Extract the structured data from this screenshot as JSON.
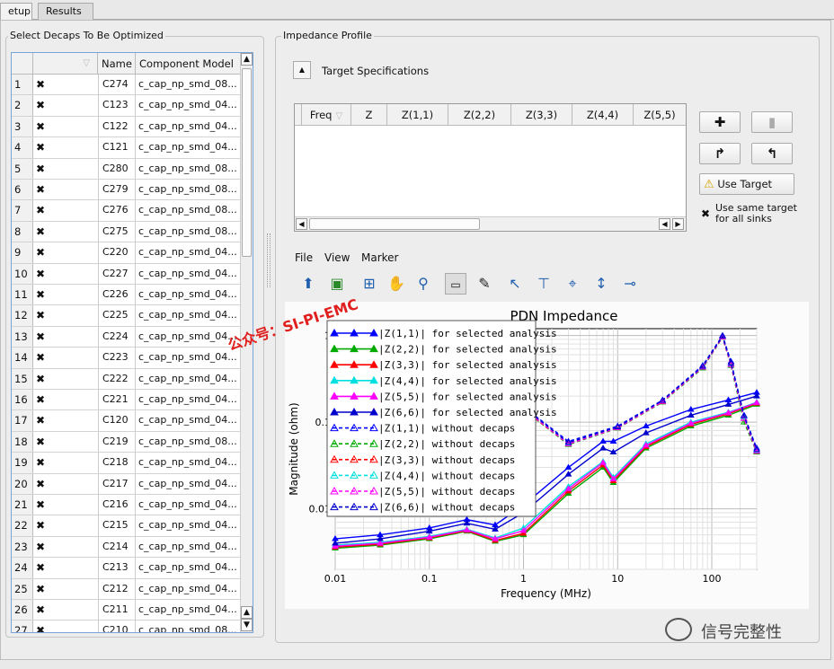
{
  "tabs": [
    "etup",
    "Results"
  ],
  "decaps": {
    "title": "Select Decaps To Be Optimized",
    "columns": [
      "",
      "Name",
      "Component Model"
    ],
    "rows": [
      {
        "n": "1",
        "name": "C274",
        "model": "c_cap_np_smd_08..."
      },
      {
        "n": "2",
        "name": "C123",
        "model": "c_cap_np_smd_04..."
      },
      {
        "n": "3",
        "name": "C122",
        "model": "c_cap_np_smd_04..."
      },
      {
        "n": "4",
        "name": "C121",
        "model": "c_cap_np_smd_04..."
      },
      {
        "n": "5",
        "name": "C280",
        "model": "c_cap_np_smd_08..."
      },
      {
        "n": "6",
        "name": "C279",
        "model": "c_cap_np_smd_08..."
      },
      {
        "n": "7",
        "name": "C276",
        "model": "c_cap_np_smd_08..."
      },
      {
        "n": "8",
        "name": "C275",
        "model": "c_cap_np_smd_08..."
      },
      {
        "n": "9",
        "name": "C220",
        "model": "c_cap_np_smd_04..."
      },
      {
        "n": "10",
        "name": "C227",
        "model": "c_cap_np_smd_04..."
      },
      {
        "n": "11",
        "name": "C226",
        "model": "c_cap_np_smd_04..."
      },
      {
        "n": "12",
        "name": "C225",
        "model": "c_cap_np_smd_04..."
      },
      {
        "n": "13",
        "name": "C224",
        "model": "c_cap_np_smd_04..."
      },
      {
        "n": "14",
        "name": "C223",
        "model": "c_cap_np_smd_04..."
      },
      {
        "n": "15",
        "name": "C222",
        "model": "c_cap_np_smd_04..."
      },
      {
        "n": "16",
        "name": "C221",
        "model": "c_cap_np_smd_04..."
      },
      {
        "n": "17",
        "name": "C120",
        "model": "c_cap_np_smd_04..."
      },
      {
        "n": "18",
        "name": "C219",
        "model": "c_cap_np_smd_08..."
      },
      {
        "n": "19",
        "name": "C218",
        "model": "c_cap_np_smd_04..."
      },
      {
        "n": "20",
        "name": "C217",
        "model": "c_cap_np_smd_04..."
      },
      {
        "n": "21",
        "name": "C216",
        "model": "c_cap_np_smd_04..."
      },
      {
        "n": "22",
        "name": "C215",
        "model": "c_cap_np_smd_04..."
      },
      {
        "n": "23",
        "name": "C214",
        "model": "c_cap_np_smd_04..."
      },
      {
        "n": "24",
        "name": "C213",
        "model": "c_cap_np_smd_04..."
      },
      {
        "n": "25",
        "name": "C212",
        "model": "c_cap_np_smd_04..."
      },
      {
        "n": "26",
        "name": "C211",
        "model": "c_cap_np_smd_04..."
      },
      {
        "n": "27",
        "name": "C210",
        "model": "c_cap_np_smd_08..."
      }
    ]
  },
  "impedance": {
    "title": "Impedance Profile",
    "target_label": "Target Specifications",
    "columns": [
      "Freq",
      "Z",
      "Z(1,1)",
      "Z(2,2)",
      "Z(3,3)",
      "Z(4,4)",
      "Z(5,5)"
    ],
    "use_target": "Use Target",
    "same_target_line1": "Use same target",
    "same_target_line2": "for all sinks",
    "menu": [
      "File",
      "View",
      "Marker"
    ]
  },
  "watermarks": {
    "left": "公众号：SI-PI-EMC",
    "bottom": "信号完整性"
  },
  "colors": {
    "accent": "#7aa4d6",
    "red_watermark": "#e0201e"
  },
  "chart_data": {
    "type": "line",
    "title": "PDN Impedance",
    "xlabel": "Frequency (MHz)",
    "ylabel": "Magnitude (ohm)",
    "xscale": "log",
    "yscale": "log",
    "xlim": [
      0.01,
      300
    ],
    "ylim": [
      0.002,
      1.2
    ],
    "xticks": [
      {
        "v": 0.01,
        "label": "0.01"
      },
      {
        "v": 0.1,
        "label": "0.1"
      },
      {
        "v": 1,
        "label": "1"
      },
      {
        "v": 10,
        "label": "10"
      },
      {
        "v": 100,
        "label": "100"
      }
    ],
    "yticks": [
      {
        "v": 0.01,
        "label": "0.01"
      },
      {
        "v": 0.1,
        "label": "0.1"
      },
      {
        "v": 1,
        "label": "1"
      }
    ],
    "grid": true,
    "legend_position": "top-left",
    "series": [
      {
        "name": "|Z(1,1)| for selected analysis",
        "color": "#0000ff",
        "dash": false,
        "x": [
          0.01,
          0.03,
          0.1,
          0.25,
          0.5,
          1,
          3,
          7,
          9,
          20,
          60,
          150,
          300
        ],
        "y": [
          0.0045,
          0.005,
          0.006,
          0.0075,
          0.0065,
          0.011,
          0.03,
          0.06,
          0.06,
          0.09,
          0.14,
          0.18,
          0.22
        ]
      },
      {
        "name": "|Z(2,2)| for selected analysis",
        "color": "#00aa00",
        "dash": false,
        "x": [
          0.01,
          0.03,
          0.1,
          0.25,
          0.5,
          1,
          3,
          7,
          9,
          20,
          60,
          150,
          300
        ],
        "y": [
          0.0035,
          0.0038,
          0.0045,
          0.0055,
          0.0042,
          0.005,
          0.015,
          0.03,
          0.02,
          0.05,
          0.09,
          0.12,
          0.16
        ]
      },
      {
        "name": "|Z(3,3)| for selected analysis",
        "color": "#ff0000",
        "dash": false,
        "x": [
          0.01,
          0.03,
          0.1,
          0.25,
          0.5,
          1,
          3,
          7,
          9,
          20,
          60,
          150,
          300
        ],
        "y": [
          0.0036,
          0.0039,
          0.0046,
          0.0056,
          0.0043,
          0.0052,
          0.016,
          0.032,
          0.021,
          0.052,
          0.094,
          0.125,
          0.165
        ]
      },
      {
        "name": "|Z(4,4)| for selected analysis",
        "color": "#00e0e0",
        "dash": false,
        "x": [
          0.01,
          0.03,
          0.1,
          0.25,
          0.5,
          1,
          3,
          7,
          9,
          20,
          60,
          150,
          300
        ],
        "y": [
          0.0038,
          0.0041,
          0.0048,
          0.0058,
          0.0046,
          0.006,
          0.018,
          0.035,
          0.023,
          0.056,
          0.1,
          0.13,
          0.17
        ]
      },
      {
        "name": "|Z(5,5)| for selected analysis",
        "color": "#ff00ff",
        "dash": false,
        "x": [
          0.01,
          0.03,
          0.1,
          0.25,
          0.5,
          1,
          3,
          7,
          9,
          20,
          60,
          150,
          300
        ],
        "y": [
          0.0037,
          0.004,
          0.0047,
          0.0057,
          0.0045,
          0.0056,
          0.017,
          0.034,
          0.022,
          0.054,
          0.097,
          0.128,
          0.168
        ]
      },
      {
        "name": "|Z(6,6)| for selected analysis",
        "color": "#0000cc",
        "dash": false,
        "x": [
          0.01,
          0.03,
          0.1,
          0.25,
          0.5,
          1,
          3,
          7,
          9,
          20,
          60,
          150,
          300
        ],
        "y": [
          0.004,
          0.0045,
          0.0055,
          0.0068,
          0.0058,
          0.009,
          0.025,
          0.05,
          0.045,
          0.075,
          0.12,
          0.16,
          0.2
        ]
      },
      {
        "name": "|Z(1,1)| without decaps",
        "color": "#0000ff",
        "dash": true,
        "x": [
          0.3,
          0.5,
          1,
          3,
          10,
          30,
          80,
          130,
          160,
          220,
          300
        ],
        "y": [
          0.5,
          0.3,
          0.15,
          0.06,
          0.09,
          0.18,
          0.45,
          1.0,
          0.5,
          0.12,
          0.05
        ]
      },
      {
        "name": "|Z(2,2)| without decaps",
        "color": "#00aa00",
        "dash": true,
        "x": [
          0.3,
          0.5,
          1,
          3,
          10,
          30,
          80,
          130,
          160,
          220,
          300
        ],
        "y": [
          0.45,
          0.27,
          0.14,
          0.055,
          0.085,
          0.17,
          0.42,
          0.95,
          0.45,
          0.1,
          0.045
        ]
      },
      {
        "name": "|Z(3,3)| without decaps",
        "color": "#ff0000",
        "dash": true,
        "x": [
          0.3,
          0.5,
          1,
          3,
          10,
          30,
          80,
          130,
          160,
          220,
          300
        ],
        "y": [
          0.46,
          0.28,
          0.14,
          0.056,
          0.086,
          0.172,
          0.43,
          0.96,
          0.46,
          0.11,
          0.046
        ]
      },
      {
        "name": "|Z(4,4)| without decaps",
        "color": "#00e0e0",
        "dash": true,
        "x": [
          0.3,
          0.5,
          1,
          3,
          10,
          30,
          80,
          130,
          160,
          220,
          300
        ],
        "y": [
          0.47,
          0.29,
          0.145,
          0.057,
          0.087,
          0.175,
          0.44,
          0.97,
          0.47,
          0.115,
          0.047
        ]
      },
      {
        "name": "|Z(5,5)| without decaps",
        "color": "#ff00ff",
        "dash": true,
        "x": [
          0.3,
          0.5,
          1,
          3,
          10,
          30,
          80,
          130,
          160,
          220,
          300
        ],
        "y": [
          0.46,
          0.28,
          0.143,
          0.056,
          0.086,
          0.173,
          0.43,
          0.96,
          0.46,
          0.11,
          0.046
        ]
      },
      {
        "name": "|Z(6,6)| without decaps",
        "color": "#0000cc",
        "dash": true,
        "x": [
          0.3,
          0.5,
          1,
          3,
          10,
          30,
          80,
          130,
          160,
          220,
          300
        ],
        "y": [
          0.48,
          0.29,
          0.148,
          0.058,
          0.088,
          0.178,
          0.44,
          0.98,
          0.48,
          0.118,
          0.048
        ]
      }
    ]
  }
}
